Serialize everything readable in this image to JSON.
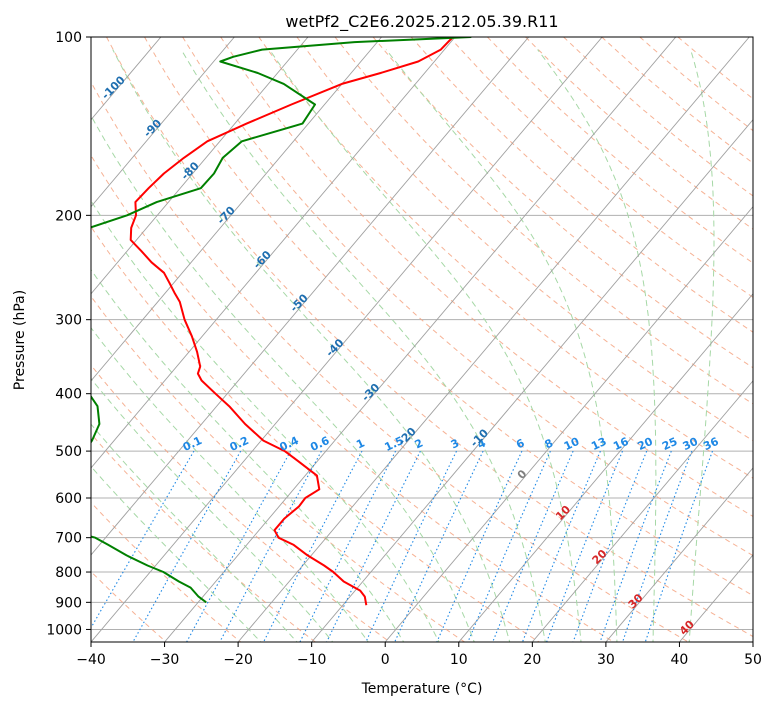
{
  "chart_data": {
    "type": "line",
    "title": "wetPf2_C2E6.2025.212.05.39.R11",
    "xlabel": "Temperature (°C)",
    "ylabel": "Pressure (hPa)",
    "xlim": [
      -40,
      50
    ],
    "ylim": [
      1050,
      100
    ],
    "y_scale": "log",
    "grid": true,
    "x_ticks": [
      -40,
      -30,
      -20,
      -10,
      0,
      10,
      20,
      30,
      40,
      50
    ],
    "y_ticks": [
      100,
      200,
      300,
      400,
      500,
      600,
      700,
      800,
      900,
      1000
    ],
    "colors": {
      "temperature": "#ff0000",
      "dewpoint": "#008000",
      "isotherm": "#a0a0a0",
      "dry_adiabat": "#f4a582",
      "moist_adiabat": "#a6d8a6",
      "mixing_ratio": "#1e88e5",
      "isotherm_label": "#1f6fb0",
      "warm_isotherm_label": "#d62728"
    },
    "series": [
      {
        "key": "temperature",
        "pressure": [
          100,
          105,
          110,
          115,
          120,
          130,
          140,
          150,
          160,
          170,
          180,
          190,
          200,
          210,
          220,
          230,
          240,
          250,
          260,
          270,
          280,
          300,
          320,
          340,
          360,
          370,
          380,
          400,
          420,
          450,
          480,
          500,
          520,
          550,
          580,
          600,
          620,
          650,
          680,
          700,
          720,
          750,
          780,
          800,
          830,
          860,
          880,
          900,
          910
        ],
        "temp": [
          -60.3,
          -60.5,
          -62.2,
          -66.0,
          -70.0,
          -74.5,
          -78.4,
          -81.7,
          -83.0,
          -83.9,
          -84.3,
          -84.5,
          -82.9,
          -82.1,
          -80.8,
          -78.0,
          -75.4,
          -72.5,
          -70.6,
          -68.8,
          -67.0,
          -64.3,
          -61.4,
          -58.9,
          -56.8,
          -56.3,
          -55.0,
          -51.6,
          -48.3,
          -44.1,
          -39.7,
          -35.6,
          -32.6,
          -28.4,
          -26.5,
          -27.4,
          -27.3,
          -27.9,
          -27.9,
          -26.5,
          -23.6,
          -20.5,
          -17.1,
          -15.1,
          -12.6,
          -9.3,
          -8.0,
          -7.2,
          -6.8
        ]
      },
      {
        "key": "dewpoint",
        "pressure": [
          100,
          102,
          105,
          108,
          110,
          115,
          120,
          130,
          140,
          150,
          160,
          170,
          180,
          190,
          200,
          210,
          220,
          230,
          240,
          250,
          260,
          270,
          280,
          290,
          300,
          320,
          340,
          360,
          370,
          380,
          400,
          420,
          450,
          480,
          500,
          520,
          550,
          570,
          580,
          590,
          600,
          620,
          650,
          680,
          700,
          720,
          750,
          780,
          800,
          830,
          850,
          880,
          900
        ],
        "temp": [
          -57.8,
          -73.1,
          -84.8,
          -87.9,
          -89.1,
          -82.7,
          -77.9,
          -71.3,
          -70.8,
          -77.0,
          -77.7,
          -77.1,
          -77.2,
          -81.6,
          -84.1,
          -87.8,
          -89.9,
          -88.8,
          -86.8,
          -86.7,
          -88.6,
          -91.2,
          -92.6,
          -93.2,
          -91.9,
          -91.5,
          -87.7,
          -80.9,
          -77.1,
          -71.2,
          -68.8,
          -66.2,
          -63.9,
          -63.0,
          -62.8,
          -62.5,
          -65.2,
          -75.0,
          -80.5,
          -81.6,
          -78.8,
          -77.3,
          -71.3,
          -56.2,
          -51.4,
          -48.8,
          -45.1,
          -41.1,
          -38.2,
          -35.0,
          -32.7,
          -30.6,
          -28.9
        ]
      }
    ],
    "isotherm_labels": [
      "-100",
      "-90",
      "-80",
      "-70",
      "-60",
      "-50",
      "-40",
      "-30",
      "-20",
      "-10",
      "0",
      "10",
      "20",
      "30",
      "40"
    ],
    "isotherm_label_values": [
      -100,
      -90,
      -80,
      -70,
      -60,
      -50,
      -40,
      -30,
      -20,
      -10,
      0,
      10,
      20,
      30,
      40
    ],
    "isotherm_label_pressures": [
      123,
      144,
      170,
      202,
      240,
      284,
      338,
      402,
      477,
      480,
      553,
      642,
      762,
      905,
      1003
    ],
    "mixing_ratio_labels": [
      "0.1",
      "0.2",
      "0.4",
      "0.6",
      "1",
      "1.5",
      "2",
      "3",
      "4",
      "6",
      "8",
      "10",
      "13",
      "16",
      "20",
      "25",
      "30",
      "36"
    ],
    "mixing_ratio_values": [
      0.1,
      0.2,
      0.4,
      0.6,
      1,
      1.5,
      2,
      3,
      4,
      6,
      8,
      10,
      13,
      16,
      20,
      25,
      30,
      36
    ]
  }
}
